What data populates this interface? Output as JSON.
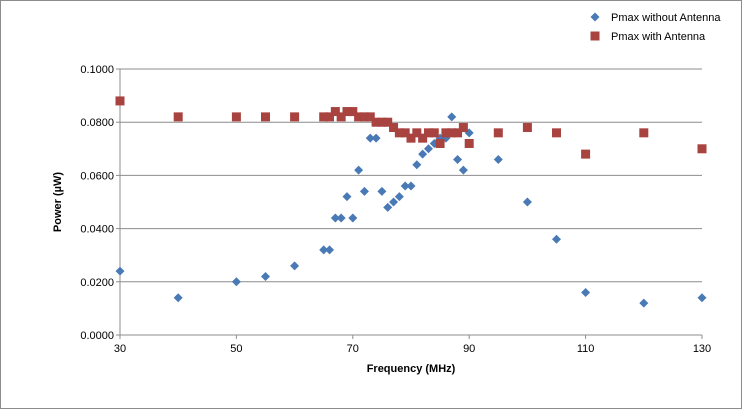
{
  "chart_data": {
    "type": "scatter",
    "title": "",
    "xlabel": "Frequency (MHz)",
    "ylabel": "Power (µW)",
    "xlim": [
      30,
      130
    ],
    "ylim": [
      0,
      0.1
    ],
    "x_ticks": [
      "30",
      "50",
      "70",
      "90",
      "110",
      "130"
    ],
    "x_tick_values": [
      30,
      50,
      70,
      90,
      110,
      130
    ],
    "y_ticks": [
      "0.0000",
      "0.0200",
      "0.0400",
      "0.0600",
      "0.0800",
      "0.1000"
    ],
    "y_tick_values": [
      0,
      0.02,
      0.04,
      0.06,
      0.08,
      0.1
    ],
    "grid": "horizontal",
    "legend_position": "top-right",
    "series": [
      {
        "name": "Pmax without Antenna",
        "marker": "diamond",
        "color": "#4a7ab5",
        "points": [
          [
            30,
            0.024
          ],
          [
            40,
            0.014
          ],
          [
            50,
            0.02
          ],
          [
            55,
            0.022
          ],
          [
            60,
            0.026
          ],
          [
            65,
            0.032
          ],
          [
            66,
            0.032
          ],
          [
            67,
            0.044
          ],
          [
            68,
            0.044
          ],
          [
            69,
            0.052
          ],
          [
            70,
            0.044
          ],
          [
            71,
            0.062
          ],
          [
            72,
            0.054
          ],
          [
            73,
            0.074
          ],
          [
            74,
            0.074
          ],
          [
            75,
            0.054
          ],
          [
            76,
            0.048
          ],
          [
            77,
            0.05
          ],
          [
            78,
            0.052
          ],
          [
            79,
            0.056
          ],
          [
            80,
            0.056
          ],
          [
            81,
            0.064
          ],
          [
            82,
            0.068
          ],
          [
            83,
            0.07
          ],
          [
            84,
            0.072
          ],
          [
            85,
            0.074
          ],
          [
            86,
            0.074
          ],
          [
            87,
            0.082
          ],
          [
            88,
            0.066
          ],
          [
            89,
            0.062
          ],
          [
            90,
            0.076
          ],
          [
            95,
            0.066
          ],
          [
            100,
            0.05
          ],
          [
            105,
            0.036
          ],
          [
            110,
            0.016
          ],
          [
            120,
            0.012
          ],
          [
            130,
            0.014
          ]
        ]
      },
      {
        "name": "Pmax with Antenna",
        "marker": "square",
        "color": "#a94340",
        "points": [
          [
            30,
            0.088
          ],
          [
            40,
            0.082
          ],
          [
            50,
            0.082
          ],
          [
            55,
            0.082
          ],
          [
            60,
            0.082
          ],
          [
            65,
            0.082
          ],
          [
            66,
            0.082
          ],
          [
            67,
            0.084
          ],
          [
            68,
            0.082
          ],
          [
            69,
            0.084
          ],
          [
            70,
            0.084
          ],
          [
            71,
            0.082
          ],
          [
            72,
            0.082
          ],
          [
            73,
            0.082
          ],
          [
            74,
            0.08
          ],
          [
            75,
            0.08
          ],
          [
            76,
            0.08
          ],
          [
            77,
            0.078
          ],
          [
            78,
            0.076
          ],
          [
            79,
            0.076
          ],
          [
            80,
            0.074
          ],
          [
            81,
            0.076
          ],
          [
            82,
            0.074
          ],
          [
            83,
            0.076
          ],
          [
            84,
            0.076
          ],
          [
            85,
            0.072
          ],
          [
            86,
            0.076
          ],
          [
            87,
            0.076
          ],
          [
            88,
            0.076
          ],
          [
            89,
            0.078
          ],
          [
            90,
            0.072
          ],
          [
            95,
            0.076
          ],
          [
            100,
            0.078
          ],
          [
            105,
            0.076
          ],
          [
            110,
            0.068
          ],
          [
            120,
            0.076
          ],
          [
            130,
            0.07
          ]
        ]
      }
    ]
  }
}
